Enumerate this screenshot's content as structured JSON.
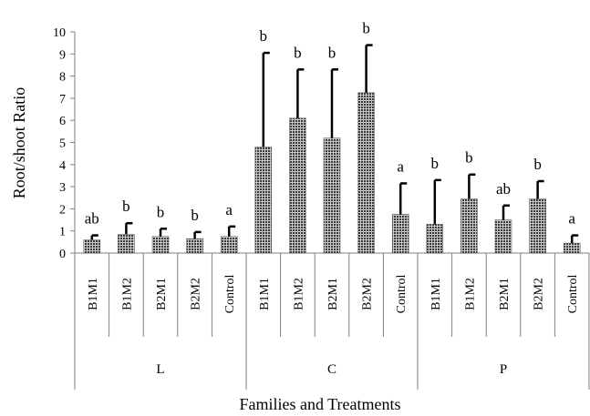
{
  "chart_data": {
    "type": "bar",
    "xlabel": "Families and Treatments",
    "ylabel": "Root/shoot Ratio",
    "ylim": [
      0,
      10
    ],
    "yticks": [
      0,
      1,
      2,
      3,
      4,
      5,
      6,
      7,
      8,
      9,
      10
    ],
    "grid": false,
    "legend": "none",
    "bar_fill": "dotted dark gray",
    "groups": [
      {
        "name": "L",
        "bars": [
          {
            "category": "B1M1",
            "value": 0.6,
            "error": 0.2,
            "significance": "ab"
          },
          {
            "category": "B1M2",
            "value": 0.85,
            "error": 0.5,
            "significance": "b"
          },
          {
            "category": "B2M1",
            "value": 0.75,
            "error": 0.35,
            "significance": "b"
          },
          {
            "category": "B2M2",
            "value": 0.65,
            "error": 0.3,
            "significance": "b"
          },
          {
            "category": "Control",
            "value": 0.75,
            "error": 0.45,
            "significance": "a"
          }
        ]
      },
      {
        "name": "C",
        "bars": [
          {
            "category": "B1M1",
            "value": 4.8,
            "error": 4.25,
            "significance": "b"
          },
          {
            "category": "B1M2",
            "value": 6.1,
            "error": 2.2,
            "significance": "b"
          },
          {
            "category": "B2M1",
            "value": 5.2,
            "error": 3.1,
            "significance": "b"
          },
          {
            "category": "B2M2",
            "value": 7.25,
            "error": 2.15,
            "significance": "b"
          },
          {
            "category": "Control",
            "value": 1.75,
            "error": 1.4,
            "significance": "a"
          }
        ]
      },
      {
        "name": "P",
        "bars": [
          {
            "category": "B1M1",
            "value": 1.3,
            "error": 2.0,
            "significance": "b"
          },
          {
            "category": "B1M2",
            "value": 2.45,
            "error": 1.1,
            "significance": "b"
          },
          {
            "category": "B2M1",
            "value": 1.5,
            "error": 0.65,
            "significance": "ab"
          },
          {
            "category": "B2M2",
            "value": 2.45,
            "error": 0.8,
            "significance": "b"
          },
          {
            "category": "Control",
            "value": 0.45,
            "error": 0.35,
            "significance": "a"
          }
        ]
      }
    ]
  }
}
